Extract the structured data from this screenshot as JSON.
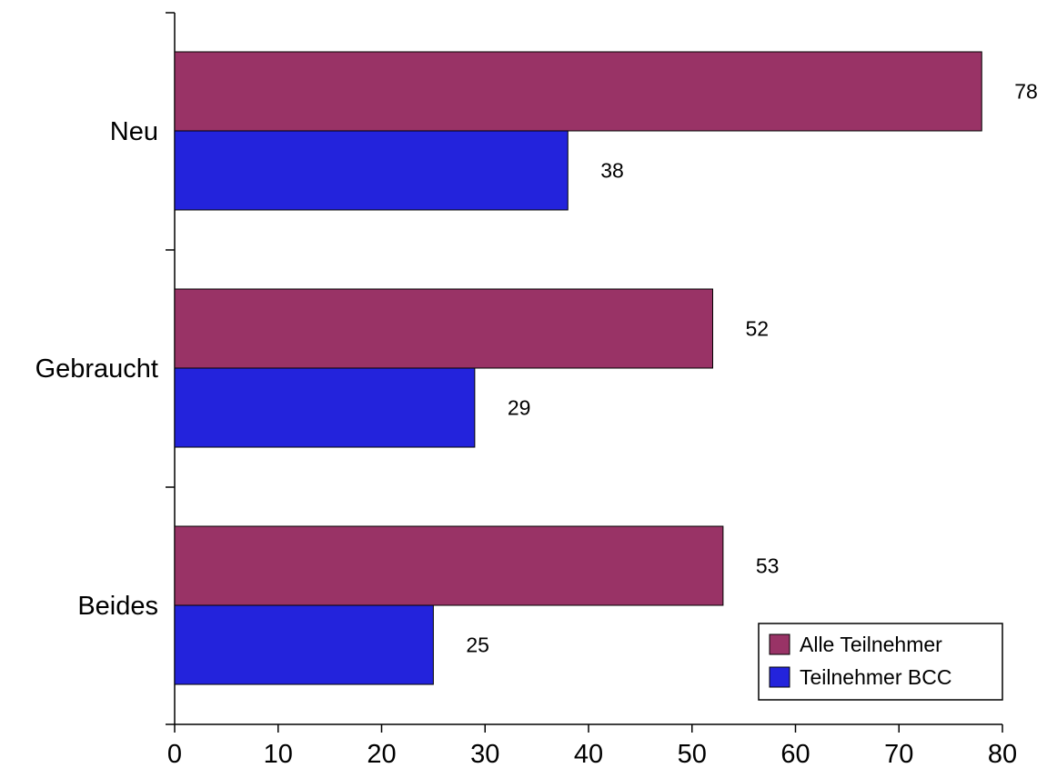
{
  "chart_data": {
    "type": "bar",
    "orientation": "horizontal",
    "categories": [
      "Neu",
      "Gebraucht",
      "Beides"
    ],
    "series": [
      {
        "name": "Alle Teilnehmer",
        "values": [
          78,
          52,
          53
        ],
        "color": "#993366"
      },
      {
        "name": "Teilnehmer BCC",
        "values": [
          38,
          29,
          25
        ],
        "color": "#2323DC"
      }
    ],
    "xlim": [
      0,
      80
    ],
    "xticks": [
      0,
      10,
      20,
      30,
      40,
      50,
      60,
      70,
      80
    ],
    "xlabel": "",
    "ylabel": "",
    "title": "",
    "grid": false,
    "legend_position": "bottom-right"
  }
}
